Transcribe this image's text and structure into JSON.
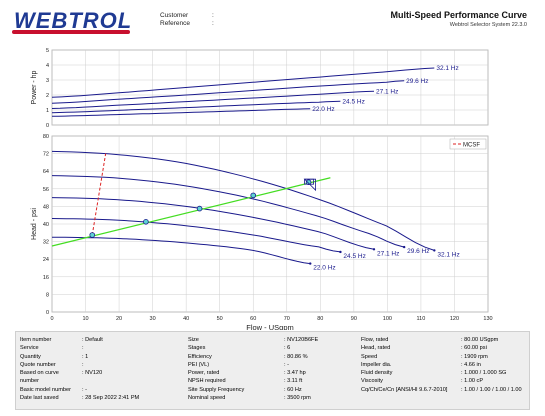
{
  "header": {
    "logo_text": "WEBTROL",
    "customer_label": "Customer",
    "reference_label": "Reference",
    "customer_value": ":",
    "reference_value": ":",
    "title": "Multi-Speed Performance Curve",
    "subtitle": "Webtrol Selector System 22.3.0"
  },
  "colors": {
    "curve": "#1a1a8c",
    "system_curve": "#44dd22",
    "mcsf": "#dd2222",
    "grid": "#cfcfcf",
    "logo_blue": "#1f3a93",
    "logo_red": "#c8102e"
  },
  "chart_data": [
    {
      "type": "line",
      "ylabel": "Power - hp",
      "ylim": [
        0,
        5
      ],
      "xlim": [
        0,
        130
      ],
      "yticks": [
        0,
        1,
        2,
        3,
        4,
        5
      ],
      "grid": true,
      "series": [
        {
          "name": "32.1 Hz",
          "x": [
            0,
            20,
            40,
            60,
            80,
            100,
            114
          ],
          "y": [
            1.85,
            2.15,
            2.5,
            2.85,
            3.2,
            3.55,
            3.8
          ]
        },
        {
          "name": "29.6 Hz",
          "x": [
            0,
            20,
            40,
            60,
            80,
            100,
            105
          ],
          "y": [
            1.45,
            1.72,
            2.0,
            2.3,
            2.6,
            2.85,
            2.95
          ]
        },
        {
          "name": "27.1 Hz",
          "x": [
            0,
            20,
            40,
            60,
            80,
            96
          ],
          "y": [
            1.1,
            1.32,
            1.56,
            1.8,
            2.05,
            2.25
          ]
        },
        {
          "name": "24.5 Hz",
          "x": [
            0,
            20,
            40,
            60,
            80,
            86
          ],
          "y": [
            0.82,
            0.98,
            1.16,
            1.35,
            1.52,
            1.58
          ]
        },
        {
          "name": "22.0 Hz",
          "x": [
            0,
            20,
            40,
            60,
            77
          ],
          "y": [
            0.58,
            0.7,
            0.83,
            0.97,
            1.08
          ]
        }
      ]
    },
    {
      "type": "line",
      "xlabel": "Flow - USgpm",
      "ylabel": "Head - psi",
      "xlim": [
        0,
        130
      ],
      "ylim": [
        0,
        80
      ],
      "xticks": [
        0,
        10,
        20,
        30,
        40,
        50,
        60,
        70,
        80,
        90,
        100,
        110,
        120,
        130
      ],
      "yticks": [
        0,
        8,
        16,
        24,
        32,
        40,
        48,
        56,
        64,
        72,
        80
      ],
      "grid": true,
      "legend": {
        "position": "top-right",
        "entries": [
          "MCSF"
        ]
      },
      "series": [
        {
          "name": "32.1 Hz",
          "x": [
            0,
            20,
            40,
            60,
            80,
            100,
            114
          ],
          "y": [
            73,
            71.5,
            67.5,
            60.5,
            51,
            39,
            28
          ]
        },
        {
          "name": "29.6 Hz",
          "x": [
            0,
            20,
            40,
            60,
            80,
            96,
            105
          ],
          "y": [
            62,
            60.8,
            57.3,
            51.4,
            43.3,
            35,
            29.5
          ]
        },
        {
          "name": "27.1 Hz",
          "x": [
            0,
            20,
            40,
            60,
            80,
            96
          ],
          "y": [
            52,
            51,
            48,
            43,
            36.3,
            28.5
          ]
        },
        {
          "name": "24.5 Hz",
          "x": [
            0,
            20,
            40,
            60,
            80,
            86
          ],
          "y": [
            42.5,
            41.7,
            39.2,
            35,
            29.5,
            27.3
          ]
        },
        {
          "name": "22.0 Hz",
          "x": [
            0,
            20,
            40,
            60,
            77
          ],
          "y": [
            34,
            33.4,
            31.4,
            28,
            22
          ]
        },
        {
          "name": "MCSF",
          "x": [
            12,
            16
          ],
          "y": [
            35,
            72
          ]
        },
        {
          "name": "system",
          "x": [
            0,
            83
          ],
          "y": [
            30,
            61
          ]
        }
      ],
      "operating_points": {
        "x": [
          12,
          28,
          44,
          60,
          76.5
        ],
        "y": [
          35,
          41,
          47,
          53,
          59
        ]
      }
    }
  ],
  "info": {
    "col1": [
      {
        "label": "Item number",
        "value": ": Default"
      },
      {
        "label": "Service",
        "value": ":"
      },
      {
        "label": "Quantity",
        "value": ": 1"
      },
      {
        "label": "Quote number",
        "value": ":"
      },
      {
        "label": "Based on curve",
        "value": ": NV120"
      },
      {
        "label": "number",
        "value": ""
      },
      {
        "label": "Basic model number",
        "value": ": -"
      },
      {
        "label": "Date last saved",
        "value": ": 28 Sep 2022 2:41 PM"
      }
    ],
    "col2": [
      {
        "label": "Size",
        "value": ": NV120B6FE"
      },
      {
        "label": "Stages",
        "value": ": 6"
      },
      {
        "label": "Efficiency",
        "value": ": 80.86 %"
      },
      {
        "label": "PEI (VL)",
        "value": ": -"
      },
      {
        "label": "Power, rated",
        "value": ": 3.47 hp"
      },
      {
        "label": "NPSH required",
        "value": ": 3.11 ft"
      },
      {
        "label": "Site Supply Frequency",
        "value": ": 60 Hz"
      },
      {
        "label": "Nominal speed",
        "value": ": 3500 rpm"
      }
    ],
    "col3": [
      {
        "label": "Flow, rated",
        "value": ": 80.00 USgpm"
      },
      {
        "label": "Head, rated",
        "value": ": 60.00 psi"
      },
      {
        "label": "Speed",
        "value": ": 1909 rpm"
      },
      {
        "label": "Impeller dia.",
        "value": ": 4.66 in"
      },
      {
        "label": "Fluid density",
        "value": ": 1.000 / 1.000 SG"
      },
      {
        "label": "Viscosity",
        "value": ": 1.00 cP"
      },
      {
        "label": "Cq/Ch/Ce/Cn  [ANSI/HI 9.6.7-2010]",
        "value": ": 1.00 / 1.00 / 1.00 / 1.00"
      }
    ]
  }
}
